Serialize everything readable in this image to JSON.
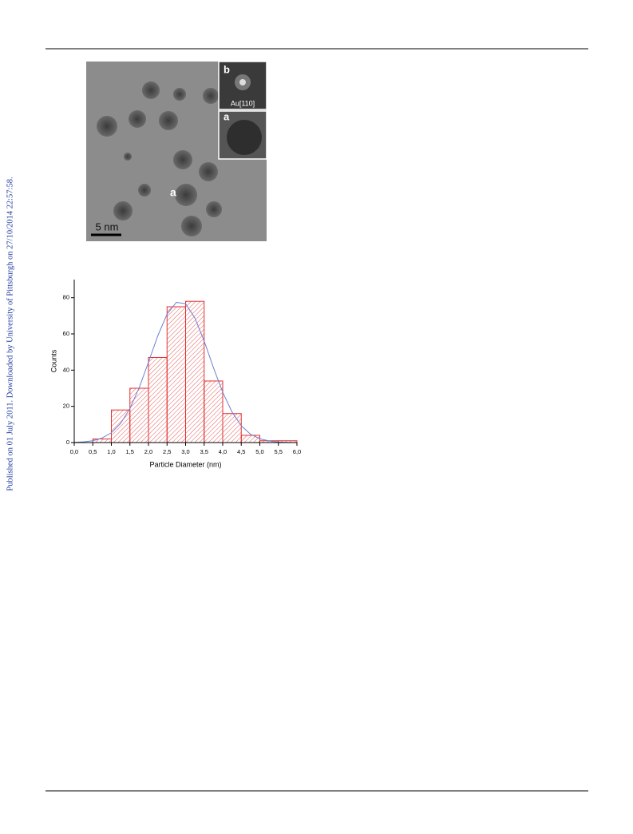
{
  "side_note": "Published on 01 July 2011. Downloaded by University of Pittsburgh on 27/10/2014 22:57:58.",
  "figure": {
    "inset_b": "b",
    "inset_b_caption": "Au[110]",
    "inset_a": "a",
    "particle_label": "a",
    "scale_bar": "5 nm"
  },
  "chart_data": {
    "type": "histogram",
    "xlabel": "Particle Diameter (nm)",
    "ylabel": "Counts",
    "bins": [
      0.5,
      1.0,
      1.5,
      2.0,
      2.5,
      3.0,
      3.5,
      4.0,
      4.5,
      5.0,
      5.5,
      6.0
    ],
    "values": [
      2,
      18,
      30,
      47,
      75,
      78,
      34,
      16,
      4,
      1,
      1
    ],
    "color": "#e03030",
    "fit": {
      "color": "#7080d0",
      "x": [
        0,
        0.25,
        0.5,
        0.75,
        1.0,
        1.25,
        1.5,
        1.75,
        2.0,
        2.25,
        2.5,
        2.75,
        3.0,
        3.25,
        3.5,
        3.75,
        4.0,
        4.25,
        4.5,
        4.75,
        5.0,
        5.25,
        5.5,
        5.75,
        6.0
      ],
      "values": [
        0.1,
        0.4,
        1.0,
        2.5,
        5.4,
        10.6,
        18.8,
        30.3,
        44.4,
        58.9,
        70.9,
        77.4,
        76.7,
        68.8,
        56.1,
        41.4,
        27.8,
        16.9,
        9.3,
        4.6,
        2.1,
        0.9,
        0.3,
        0.1,
        0
      ]
    },
    "xlim": [
      0,
      6
    ],
    "ylim": [
      0,
      90
    ],
    "xticks": [
      {
        "value": 0,
        "label": "0,0"
      },
      {
        "value": 0.5,
        "label": "0,5"
      },
      {
        "value": 1,
        "label": "1,0"
      },
      {
        "value": 1.5,
        "label": "1,5"
      },
      {
        "value": 2,
        "label": "2,0"
      },
      {
        "value": 2.5,
        "label": "2,5"
      },
      {
        "value": 3,
        "label": "3,0"
      },
      {
        "value": 3.5,
        "label": "3,5"
      },
      {
        "value": 4,
        "label": "4,0"
      },
      {
        "value": 4.5,
        "label": "4,5"
      },
      {
        "value": 5,
        "label": "5,0"
      },
      {
        "value": 5.5,
        "label": "5,5"
      },
      {
        "value": 6,
        "label": "6,0"
      }
    ],
    "yticks": [
      0,
      20,
      40,
      60,
      80
    ]
  }
}
